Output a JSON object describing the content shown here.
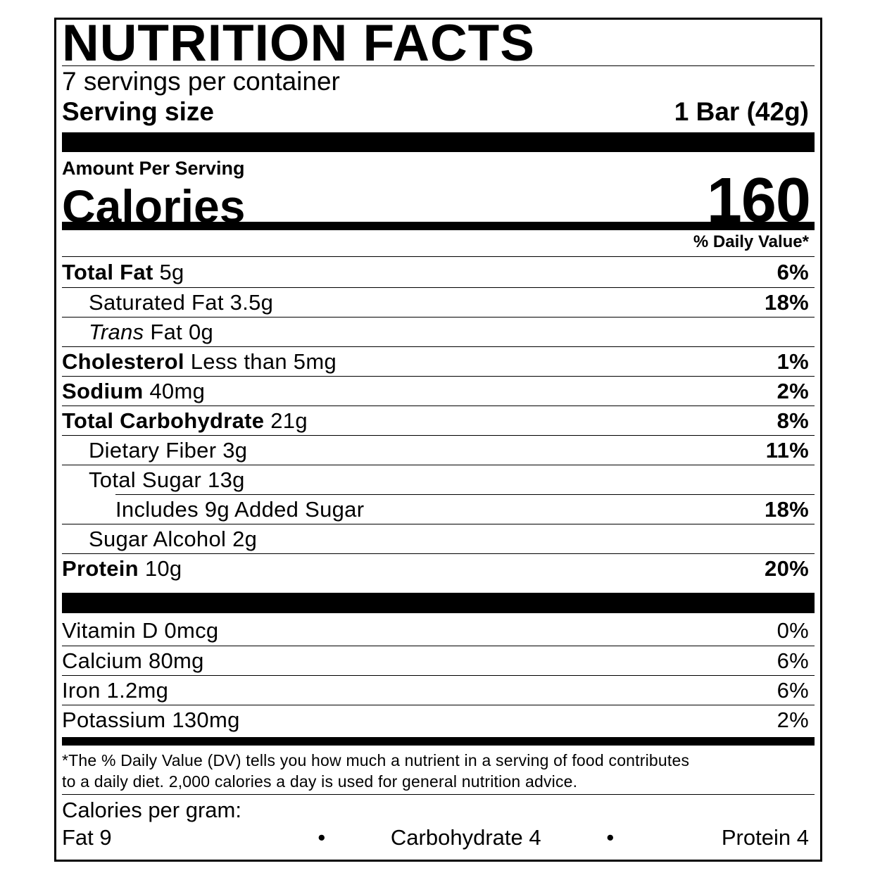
{
  "title": "NUTRITION FACTS",
  "servings_per_container": "7 servings per container",
  "serving_size": {
    "label": "Serving size",
    "value": "1 Bar (42g)"
  },
  "amount_per_serving": "Amount Per Serving",
  "calories": {
    "label": "Calories",
    "value": "160"
  },
  "daily_value_header": "% Daily Value*",
  "nutrients": [
    {
      "name": "Total Fat",
      "amount": "5g",
      "dv": "6%",
      "bold": true,
      "indent": 0
    },
    {
      "name": "Saturated Fat",
      "amount": "3.5g",
      "dv": "18%",
      "bold": false,
      "indent": 1
    },
    {
      "name": "Trans",
      "name_suffix": "Fat",
      "amount": "0g",
      "dv": "",
      "bold": false,
      "indent": 1,
      "italic": true
    },
    {
      "name": "Cholesterol",
      "amount": "Less than 5mg",
      "dv": "1%",
      "bold": true,
      "indent": 0
    },
    {
      "name": "Sodium",
      "amount": "40mg",
      "dv": "2%",
      "bold": true,
      "indent": 0
    },
    {
      "name": "Total Carbohydrate",
      "amount": "21g",
      "dv": "8%",
      "bold": true,
      "indent": 0
    },
    {
      "name": "Dietary Fiber",
      "amount": "3g",
      "dv": "11%",
      "bold": false,
      "indent": 1
    },
    {
      "name": "Total Sugar",
      "amount": "13g",
      "dv": "",
      "bold": false,
      "indent": 1
    },
    {
      "name": "Includes 9g Added Sugar",
      "amount": "",
      "dv": "18%",
      "bold": false,
      "indent": 2
    },
    {
      "name": "Sugar Alcohol",
      "amount": "2g",
      "dv": "",
      "bold": false,
      "indent": 1
    },
    {
      "name": "Protein",
      "amount": "10g",
      "dv": "20%",
      "bold": true,
      "indent": 0
    }
  ],
  "vitamins": [
    {
      "name": "Vitamin D 0mcg",
      "dv": "0%"
    },
    {
      "name": "Calcium 80mg",
      "dv": "6%"
    },
    {
      "name": "Iron 1.2mg",
      "dv": "6%"
    },
    {
      "name": "Potassium 130mg",
      "dv": "2%"
    }
  ],
  "footnote": [
    "*The % Daily Value (DV) tells you how much a nutrient in a serving of food contributes",
    "to a daily diet. 2,000 calories a day is used for general nutrition advice."
  ],
  "calories_per_gram": {
    "label": "Calories per gram:",
    "fat": "Fat 9",
    "carb": "Carbohydrate 4",
    "protein": "Protein 4",
    "separator": "•"
  }
}
